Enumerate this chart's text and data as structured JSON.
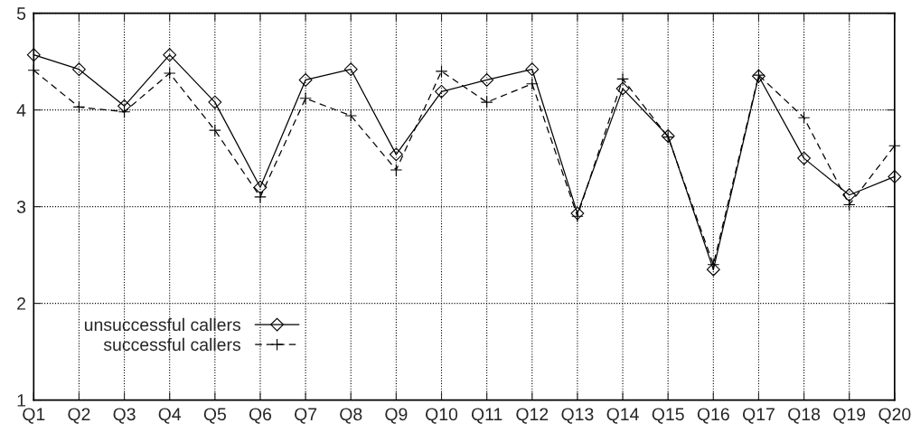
{
  "chart_data": {
    "type": "line",
    "categories": [
      "Q1",
      "Q2",
      "Q3",
      "Q4",
      "Q5",
      "Q6",
      "Q7",
      "Q8",
      "Q9",
      "Q10",
      "Q11",
      "Q12",
      "Q13",
      "Q14",
      "Q15",
      "Q16",
      "Q17",
      "Q18",
      "Q19",
      "Q20"
    ],
    "series": [
      {
        "name": "unsuccessful callers",
        "color": "#000000",
        "marker": "diamond",
        "line_style": "solid",
        "values": [
          4.57,
          4.42,
          4.04,
          4.57,
          4.08,
          3.2,
          4.31,
          4.42,
          3.54,
          4.19,
          4.31,
          4.42,
          2.93,
          4.22,
          3.73,
          2.35,
          4.35,
          3.5,
          3.12,
          3.31
        ]
      },
      {
        "name": "successful callers",
        "color": "#000000",
        "marker": "cross",
        "line_style": "dashed",
        "values": [
          4.41,
          4.03,
          3.98,
          4.38,
          3.79,
          3.1,
          4.12,
          3.94,
          3.38,
          4.4,
          4.08,
          4.27,
          2.9,
          4.32,
          3.72,
          2.4,
          4.36,
          3.92,
          3.02,
          3.63
        ]
      }
    ],
    "ylim": [
      1,
      5
    ],
    "yticks": [
      1,
      2,
      3,
      4,
      5
    ],
    "grid": true,
    "legend": "bottom left"
  }
}
